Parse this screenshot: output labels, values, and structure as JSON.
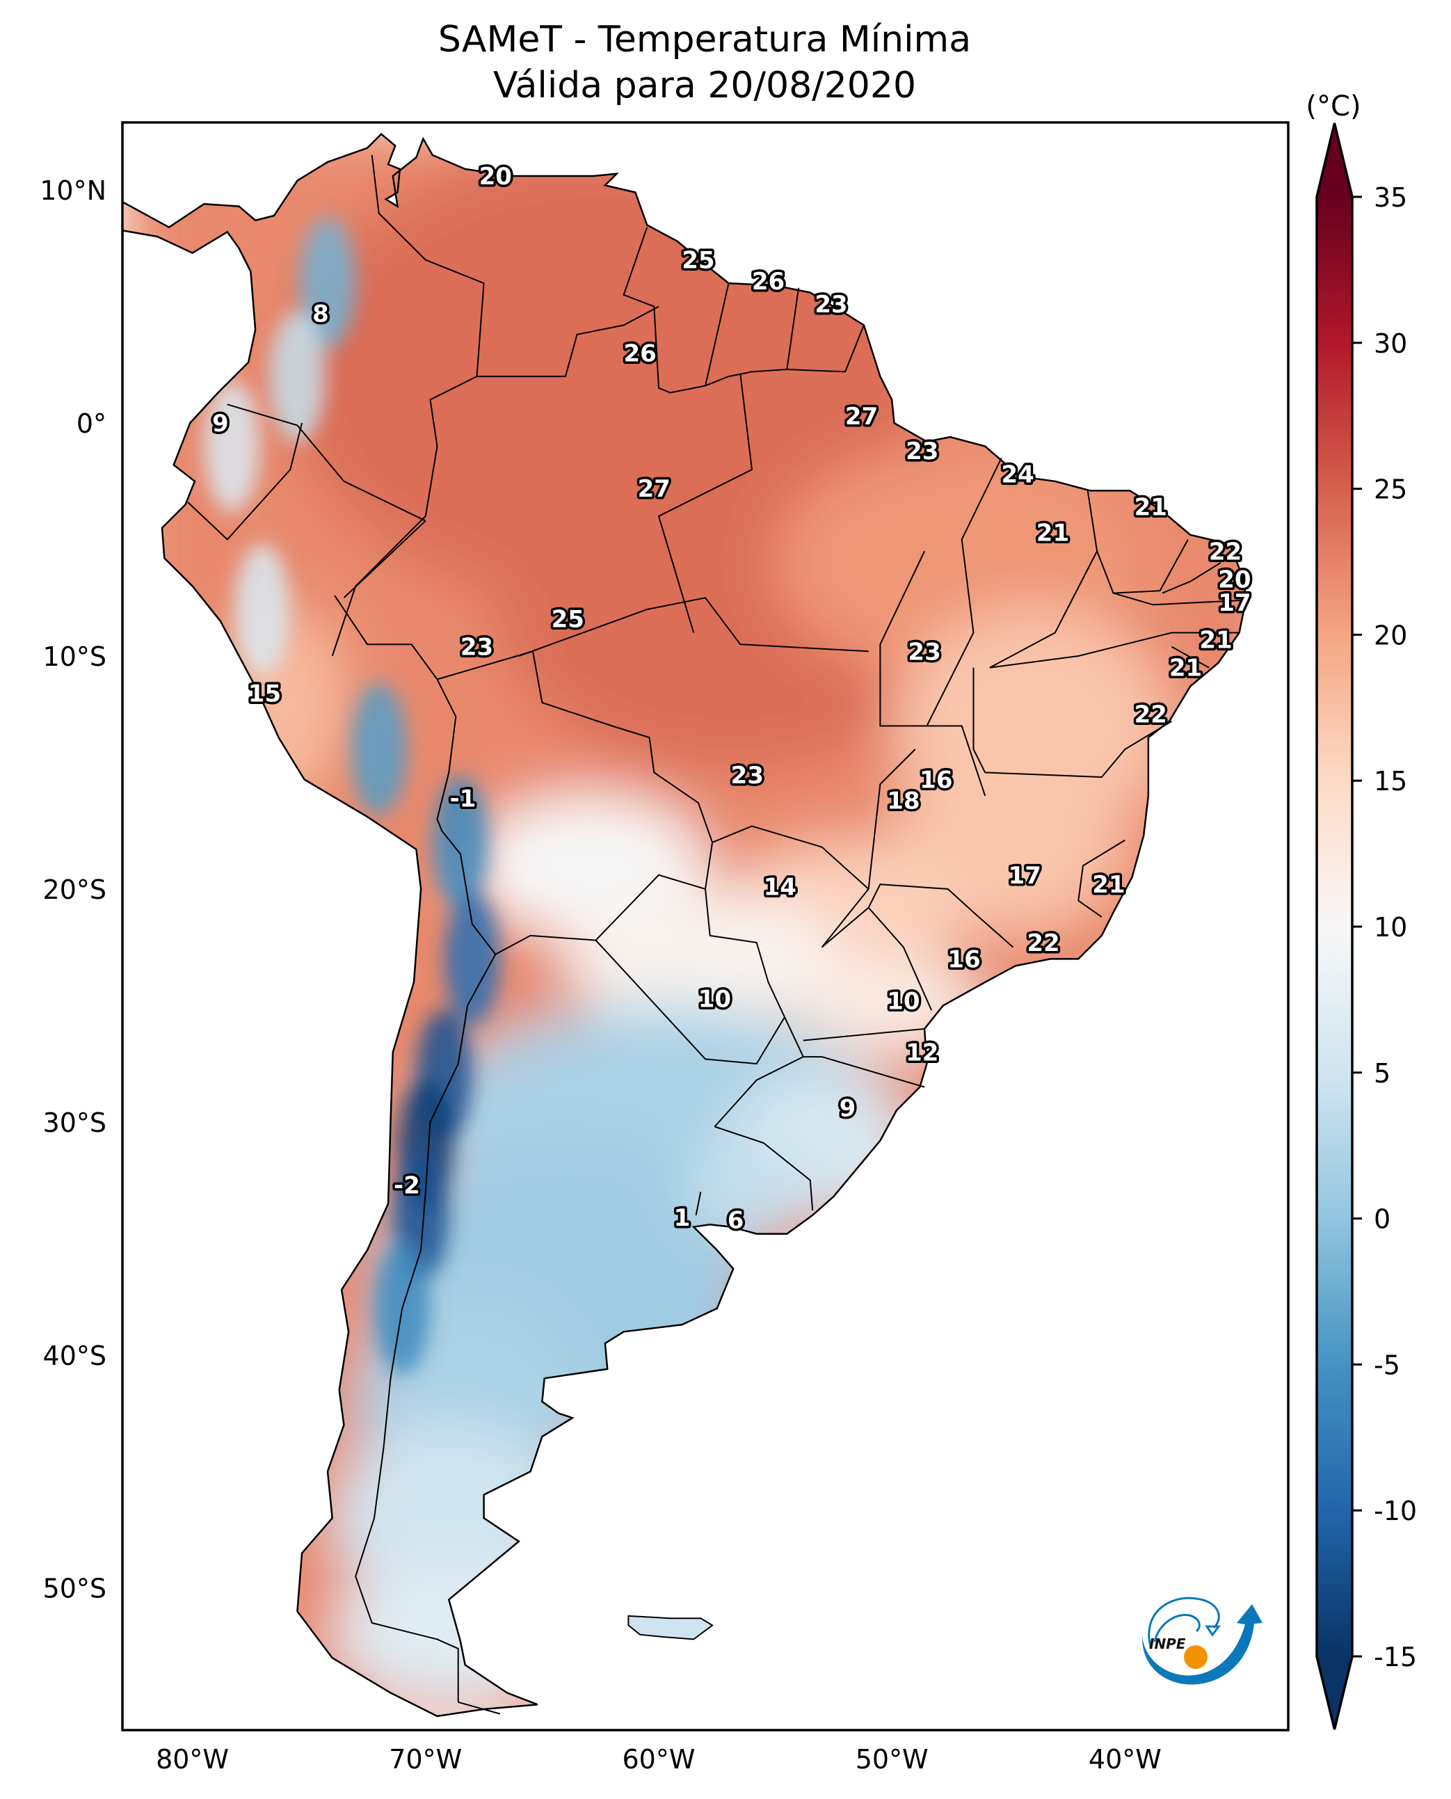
{
  "chart_data": {
    "type": "heatmap",
    "title": "SAMeT - Temperatura Mínima",
    "subtitle": "Válida para 20/08/2020",
    "projection": "PlateCarree",
    "extent": {
      "lon": [
        -83.0,
        -33.0
      ],
      "lat": [
        -56.1,
        12.9
      ]
    },
    "xticks": [
      {
        "value": -80,
        "label": "80°W"
      },
      {
        "value": -70,
        "label": "70°W"
      },
      {
        "value": -60,
        "label": "60°W"
      },
      {
        "value": -50,
        "label": "50°W"
      },
      {
        "value": -40,
        "label": "40°W"
      }
    ],
    "yticks": [
      {
        "value": 10,
        "label": "10°N"
      },
      {
        "value": 0,
        "label": "0°"
      },
      {
        "value": -10,
        "label": "10°S"
      },
      {
        "value": -20,
        "label": "20°S"
      },
      {
        "value": -30,
        "label": "30°S"
      },
      {
        "value": -40,
        "label": "40°S"
      },
      {
        "value": -50,
        "label": "50°S"
      }
    ],
    "colorbar": {
      "label": "(°C)",
      "colormap": "RdBu_r",
      "range": [
        -15,
        35
      ],
      "extend": "both",
      "ticks": [
        35,
        30,
        25,
        20,
        15,
        10,
        5,
        0,
        -5,
        -10,
        -15
      ],
      "tick_labels": [
        "35",
        "30",
        "25",
        "20",
        "15",
        "10",
        "5",
        "0",
        "-5",
        "-10",
        "-15"
      ],
      "colors": {
        "-15": "#0a3366",
        "-10": "#2166ac",
        "-5": "#4393c3",
        "0": "#92c5de",
        "5": "#d1e5f0",
        "10": "#f7f7f7",
        "15": "#fddbc7",
        "20": "#f4a582",
        "25": "#d6604d",
        "30": "#b2182b",
        "35": "#67001f"
      }
    },
    "station_labels": [
      {
        "lon": -67.0,
        "lat": 10.6,
        "value": 20
      },
      {
        "lon": -74.5,
        "lat": 4.7,
        "value": 8
      },
      {
        "lon": -78.8,
        "lat": 0.0,
        "value": 9
      },
      {
        "lon": -58.3,
        "lat": 7.0,
        "value": 25
      },
      {
        "lon": -55.3,
        "lat": 6.1,
        "value": 26
      },
      {
        "lon": -52.6,
        "lat": 5.1,
        "value": 23
      },
      {
        "lon": -60.8,
        "lat": 3.0,
        "value": 26
      },
      {
        "lon": -51.3,
        "lat": 0.3,
        "value": 27
      },
      {
        "lon": -48.7,
        "lat": -1.2,
        "value": 23
      },
      {
        "lon": -60.2,
        "lat": -2.8,
        "value": 27
      },
      {
        "lon": -44.6,
        "lat": -2.2,
        "value": 24
      },
      {
        "lon": -38.9,
        "lat": -3.6,
        "value": 21
      },
      {
        "lon": -43.1,
        "lat": -4.7,
        "value": 21
      },
      {
        "lon": -35.7,
        "lat": -5.5,
        "value": 22
      },
      {
        "lon": -35.3,
        "lat": -6.7,
        "value": 20
      },
      {
        "lon": -35.3,
        "lat": -7.7,
        "value": 17
      },
      {
        "lon": -63.9,
        "lat": -8.4,
        "value": 25
      },
      {
        "lon": -67.8,
        "lat": -9.6,
        "value": 23
      },
      {
        "lon": -48.6,
        "lat": -9.8,
        "value": 23
      },
      {
        "lon": -36.1,
        "lat": -9.3,
        "value": 21
      },
      {
        "lon": -37.4,
        "lat": -10.5,
        "value": 21
      },
      {
        "lon": -76.9,
        "lat": -11.6,
        "value": 15
      },
      {
        "lon": -38.9,
        "lat": -12.5,
        "value": 22
      },
      {
        "lon": -56.2,
        "lat": -15.1,
        "value": 23
      },
      {
        "lon": -48.1,
        "lat": -15.3,
        "value": 16
      },
      {
        "lon": -68.4,
        "lat": -16.1,
        "value": -1
      },
      {
        "lon": -49.5,
        "lat": -16.2,
        "value": 18
      },
      {
        "lon": -54.8,
        "lat": -19.9,
        "value": 14
      },
      {
        "lon": -44.3,
        "lat": -19.4,
        "value": 17
      },
      {
        "lon": -40.7,
        "lat": -19.8,
        "value": 21
      },
      {
        "lon": -43.5,
        "lat": -22.3,
        "value": 22
      },
      {
        "lon": -46.9,
        "lat": -23.0,
        "value": 16
      },
      {
        "lon": -57.6,
        "lat": -24.7,
        "value": 10
      },
      {
        "lon": -49.5,
        "lat": -24.8,
        "value": 10
      },
      {
        "lon": -48.7,
        "lat": -27.0,
        "value": 12
      },
      {
        "lon": -51.9,
        "lat": -29.4,
        "value": 9
      },
      {
        "lon": -70.8,
        "lat": -32.7,
        "value": -2
      },
      {
        "lon": -59.0,
        "lat": -34.1,
        "value": 1
      },
      {
        "lon": -56.7,
        "lat": -34.2,
        "value": 6
      }
    ]
  },
  "logo": {
    "text": "INPE",
    "blue": "#0a78bb",
    "orange": "#f39200"
  }
}
